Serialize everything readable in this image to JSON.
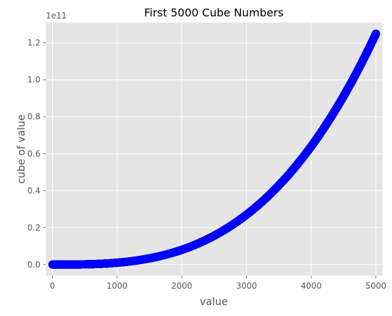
{
  "chart_data": {
    "type": "scatter",
    "title": "First 5000 Cube Numbers",
    "xlabel": "value",
    "ylabel": "cube of value",
    "y_offset_label": "1e11",
    "x_range": [
      1,
      5000
    ],
    "y_formula": "x^3",
    "xlim": [
      -100,
      5100
    ],
    "ylim": [
      -0.06,
      1.31
    ],
    "x_ticks": [
      0,
      1000,
      2000,
      3000,
      4000,
      5000
    ],
    "x_tick_labels": [
      "0",
      "1000",
      "2000",
      "3000",
      "4000",
      "5000"
    ],
    "y_ticks": [
      0.0,
      0.2,
      0.4,
      0.6,
      0.8,
      1.0,
      1.2
    ],
    "y_tick_labels": [
      "0.0",
      "0.2",
      "0.4",
      "0.6",
      "0.8",
      "1.0",
      "1.2"
    ],
    "grid": true,
    "marker_color": "#0000ff",
    "background_color": "#e5e5e5",
    "grid_color": "#ffffff"
  }
}
